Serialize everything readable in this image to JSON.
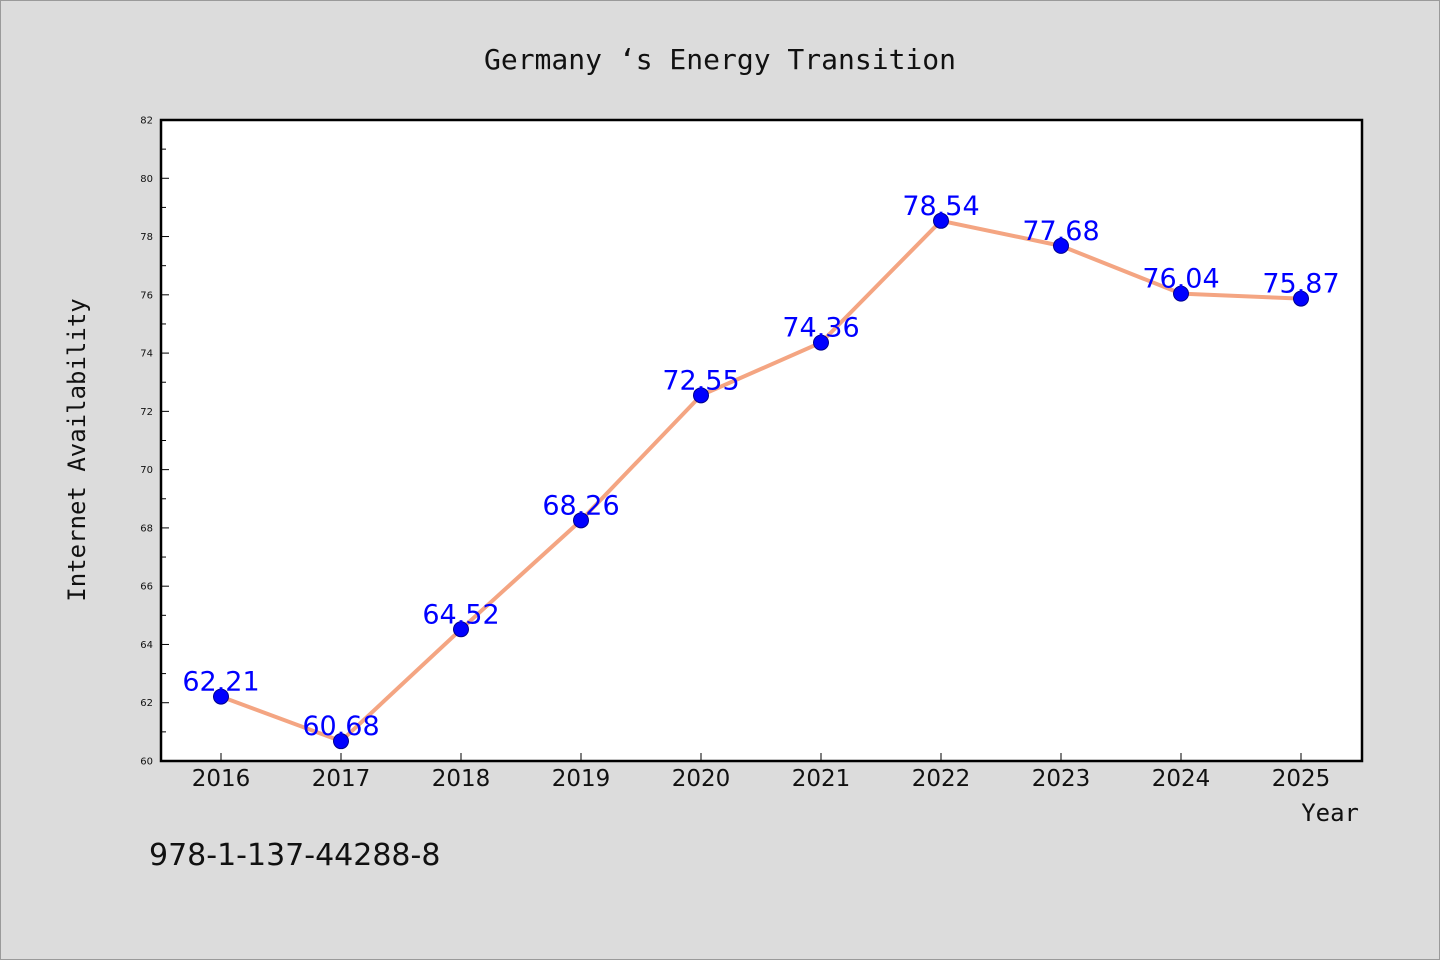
{
  "chart_data": {
    "type": "line",
    "title": "Germany ‘s Energy Transition",
    "xlabel": "Year",
    "ylabel": "Internet Availability",
    "categories": [
      "2016",
      "2017",
      "2018",
      "2019",
      "2020",
      "2021",
      "2022",
      "2023",
      "2024",
      "2025"
    ],
    "values": [
      62.21,
      60.68,
      64.52,
      68.26,
      72.55,
      74.36,
      78.54,
      77.68,
      76.04,
      75.87
    ],
    "data_labels": [
      "62.21",
      "60.68",
      "64.52",
      "68.26",
      "72.55",
      "74.36",
      "78.54",
      "77.68",
      "76.04",
      "75.87"
    ],
    "ylim": [
      60,
      82
    ],
    "yticks": [
      "60",
      "62",
      "64",
      "66",
      "68",
      "70",
      "72",
      "74",
      "76",
      "78",
      "80",
      "82"
    ],
    "grid": false,
    "line_color": "#f4a582",
    "marker_color": "#0000ff",
    "label_color": "#0000ff"
  },
  "footer": {
    "isbn": "978-1-137-44288-8"
  }
}
